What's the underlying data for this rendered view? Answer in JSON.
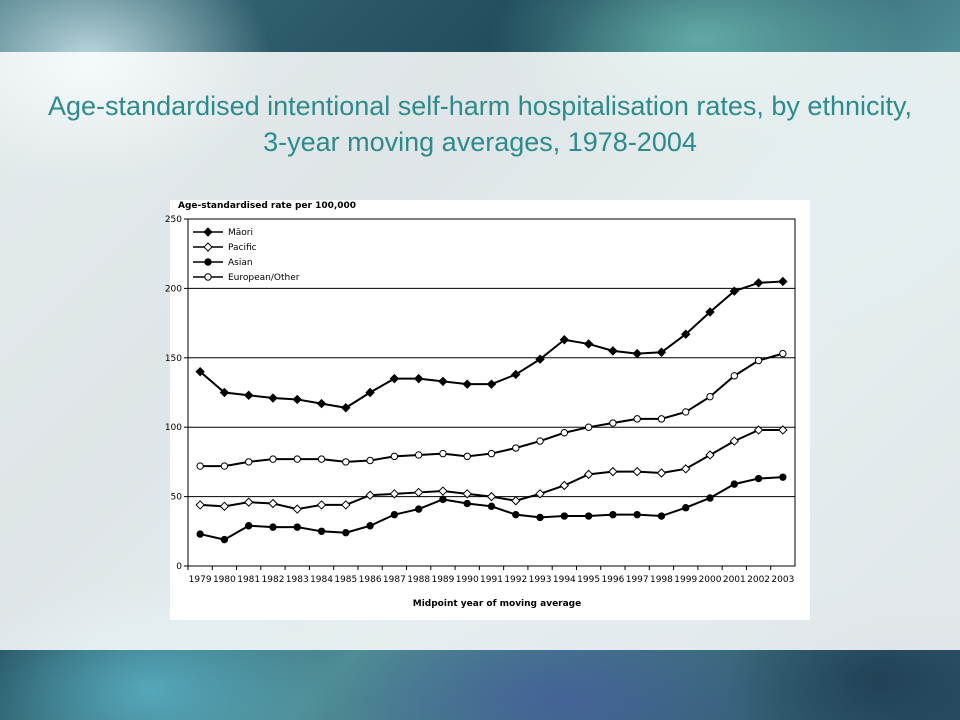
{
  "slide": {
    "title": "Age-standardised intentional self-harm hospitalisation rates, by ethnicity, 3-year moving averages, 1978-2004"
  },
  "colors": {
    "title": "#2e8b8b",
    "line": "#000000"
  },
  "chart_data": {
    "type": "line",
    "title": "",
    "ylabel": "Age-standardised rate per 100,000",
    "xlabel": "Midpoint year of moving average",
    "ylim": [
      0,
      250
    ],
    "yticks": [
      0,
      50,
      100,
      150,
      200,
      250
    ],
    "grid": "horizontal",
    "legend_position": "top-left",
    "categories": [
      "1979",
      "1980",
      "1981",
      "1982",
      "1983",
      "1984",
      "1985",
      "1986",
      "1987",
      "1988",
      "1989",
      "1990",
      "1991",
      "1992",
      "1993",
      "1994",
      "1995",
      "1996",
      "1997",
      "1998",
      "1999",
      "2000",
      "2001",
      "2002",
      "2003"
    ],
    "series": [
      {
        "name": "Māori",
        "marker": "filled-diamond",
        "values": [
          140,
          125,
          123,
          121,
          120,
          117,
          114,
          125,
          135,
          135,
          133,
          131,
          131,
          138,
          149,
          163,
          160,
          155,
          153,
          154,
          167,
          183,
          198,
          204,
          205
        ]
      },
      {
        "name": "Pacific",
        "marker": "open-diamond",
        "values": [
          44,
          43,
          46,
          45,
          41,
          44,
          44,
          51,
          52,
          53,
          54,
          52,
          50,
          47,
          52,
          58,
          66,
          68,
          68,
          67,
          70,
          80,
          90,
          98,
          98
        ]
      },
      {
        "name": "Asian",
        "marker": "filled-circle",
        "values": [
          23,
          19,
          29,
          28,
          28,
          25,
          24,
          29,
          37,
          41,
          48,
          45,
          43,
          37,
          35,
          36,
          36,
          37,
          37,
          36,
          42,
          49,
          59,
          63,
          64
        ]
      },
      {
        "name": "European/Other",
        "marker": "open-circle",
        "values": [
          72,
          72,
          75,
          77,
          77,
          77,
          75,
          76,
          79,
          80,
          81,
          79,
          81,
          85,
          90,
          96,
          100,
          103,
          106,
          106,
          111,
          122,
          137,
          148,
          153
        ]
      }
    ]
  }
}
